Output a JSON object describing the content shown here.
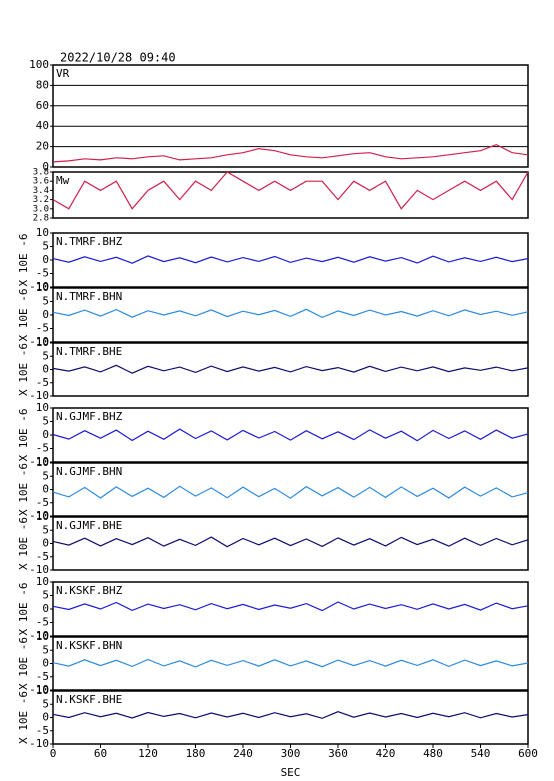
{
  "chart_data": [
    {
      "type": "line",
      "title": "2022/10/28 09:40",
      "label": "VR",
      "color": "#d0204a",
      "grid": true,
      "x": [
        0,
        20,
        40,
        60,
        80,
        100,
        120,
        140,
        160,
        180,
        200,
        220,
        240,
        260,
        280,
        300,
        320,
        340,
        360,
        380,
        400,
        420,
        440,
        460,
        480,
        500,
        520,
        540,
        560,
        580,
        600
      ],
      "values": [
        5,
        6,
        8,
        7,
        9,
        8,
        10,
        11,
        7,
        8,
        9,
        12,
        14,
        18,
        16,
        12,
        10,
        9,
        11,
        13,
        14,
        10,
        8,
        9,
        10,
        12,
        14,
        16,
        22,
        14,
        12
      ],
      "xlim": [
        0,
        600
      ],
      "ylim": [
        0,
        100
      ],
      "yticks": [
        0,
        20,
        40,
        60,
        80,
        100
      ]
    },
    {
      "type": "line",
      "label": "Mw",
      "color": "#d0204a",
      "x": [
        0,
        20,
        40,
        60,
        80,
        100,
        120,
        140,
        160,
        180,
        200,
        220,
        240,
        260,
        280,
        300,
        320,
        340,
        360,
        380,
        400,
        420,
        440,
        460,
        480,
        500,
        520,
        540,
        560,
        580,
        600
      ],
      "values": [
        3.2,
        3.0,
        3.6,
        3.4,
        3.6,
        3.0,
        3.4,
        3.6,
        3.2,
        3.6,
        3.4,
        3.8,
        3.6,
        3.4,
        3.6,
        3.4,
        3.6,
        3.6,
        3.2,
        3.6,
        3.4,
        3.6,
        3.0,
        3.4,
        3.2,
        3.4,
        3.6,
        3.4,
        3.6,
        3.2,
        3.8
      ],
      "xlim": [
        0,
        600
      ],
      "ylim": [
        2.8,
        3.8
      ],
      "yticks": [
        2.8,
        {
          "value": 3,
          "label": "3.0"
        },
        3.2,
        3.4,
        3.6,
        3.8
      ]
    },
    {
      "type": "line",
      "label": "N.TMRF.BHZ",
      "ylabel": "X 10E -6",
      "color": "#1a1ad8",
      "x": [
        0,
        20,
        40,
        60,
        80,
        100,
        120,
        140,
        160,
        180,
        200,
        220,
        240,
        260,
        280,
        300,
        320,
        340,
        360,
        380,
        400,
        420,
        440,
        460,
        480,
        500,
        520,
        540,
        560,
        580,
        600
      ],
      "values": [
        0.5,
        -0.8,
        1.2,
        -0.5,
        1.0,
        -1.2,
        1.5,
        -0.6,
        0.8,
        -1.0,
        1.1,
        -0.7,
        0.9,
        -0.5,
        1.3,
        -0.9,
        0.7,
        -0.6,
        1.0,
        -0.8,
        1.2,
        -0.4,
        0.9,
        -1.1,
        1.4,
        -0.7,
        0.8,
        -0.5,
        1.0,
        -0.6,
        0.5
      ],
      "xlim": [
        0,
        600
      ],
      "ylim": [
        -10,
        10
      ],
      "yticks": [
        -10,
        -5,
        0,
        5,
        10
      ]
    },
    {
      "type": "line",
      "label": "N.TMRF.BHN",
      "ylabel": "X 10E -6",
      "color": "#2b8ae0",
      "x": [
        0,
        20,
        40,
        60,
        80,
        100,
        120,
        140,
        160,
        180,
        200,
        220,
        240,
        260,
        280,
        300,
        320,
        340,
        360,
        380,
        400,
        420,
        440,
        460,
        480,
        500,
        520,
        540,
        560,
        580,
        600
      ],
      "values": [
        1.0,
        -0.2,
        1.8,
        -0.4,
        2.0,
        -0.8,
        1.6,
        0.0,
        1.5,
        -0.3,
        1.9,
        -0.6,
        1.4,
        0.1,
        1.7,
        -0.5,
        2.1,
        -0.9,
        1.5,
        -0.2,
        1.8,
        0.0,
        1.3,
        -0.4,
        1.6,
        -0.3,
        1.9,
        0.2,
        1.4,
        -0.1,
        1.2
      ],
      "xlim": [
        0,
        600
      ],
      "ylim": [
        -10,
        10
      ],
      "yticks": [
        -10,
        -5,
        0,
        5,
        10
      ]
    },
    {
      "type": "line",
      "label": "N.TMRF.BHE",
      "ylabel": "X 10E -6",
      "color": "#0c0c70",
      "x": [
        0,
        20,
        40,
        60,
        80,
        100,
        120,
        140,
        160,
        180,
        200,
        220,
        240,
        260,
        280,
        300,
        320,
        340,
        360,
        380,
        400,
        420,
        440,
        460,
        480,
        500,
        520,
        540,
        560,
        580,
        600
      ],
      "values": [
        0.4,
        -0.6,
        1.0,
        -0.9,
        1.6,
        -1.4,
        1.2,
        -0.5,
        0.9,
        -1.1,
        1.3,
        -0.8,
        1.0,
        -0.6,
        0.8,
        -0.9,
        1.1,
        -0.4,
        0.7,
        -1.0,
        1.2,
        -0.7,
        0.9,
        -0.5,
        1.0,
        -0.8,
        0.6,
        -0.3,
        0.9,
        -0.5,
        0.6
      ],
      "xlim": [
        0,
        600
      ],
      "ylim": [
        -10,
        10
      ],
      "yticks": [
        -10,
        -5,
        0,
        5,
        10
      ]
    },
    {
      "type": "line",
      "label": "N.GJMF.BHZ",
      "ylabel": "X 10E -6",
      "color": "#1a1ad8",
      "x": [
        0,
        20,
        40,
        60,
        80,
        100,
        120,
        140,
        160,
        180,
        200,
        220,
        240,
        260,
        280,
        300,
        320,
        340,
        360,
        380,
        400,
        420,
        440,
        460,
        480,
        500,
        520,
        540,
        560,
        580,
        600
      ],
      "values": [
        0.2,
        -1.5,
        1.6,
        -1.2,
        1.8,
        -2.0,
        1.4,
        -1.6,
        2.2,
        -1.3,
        1.5,
        -1.8,
        1.7,
        -1.1,
        1.3,
        -1.9,
        1.6,
        -1.4,
        1.2,
        -1.7,
        1.9,
        -1.2,
        1.4,
        -2.1,
        1.7,
        -1.3,
        1.5,
        -1.6,
        1.8,
        -1.2,
        0.4
      ],
      "xlim": [
        0,
        600
      ],
      "ylim": [
        -10,
        10
      ],
      "yticks": [
        -10,
        -5,
        0,
        5,
        10
      ]
    },
    {
      "type": "line",
      "label": "N.GJMF.BHN",
      "ylabel": "X 10E -6",
      "color": "#2b8ae0",
      "x": [
        0,
        20,
        40,
        60,
        80,
        100,
        120,
        140,
        160,
        180,
        200,
        220,
        240,
        260,
        280,
        300,
        320,
        340,
        360,
        380,
        400,
        420,
        440,
        460,
        480,
        500,
        520,
        540,
        560,
        580,
        600
      ],
      "values": [
        -1.0,
        -2.8,
        0.8,
        -3.2,
        1.0,
        -2.6,
        0.5,
        -3.0,
        1.2,
        -2.5,
        0.6,
        -3.1,
        0.9,
        -2.7,
        0.4,
        -3.3,
        1.1,
        -2.4,
        0.7,
        -2.9,
        0.8,
        -3.0,
        1.0,
        -2.6,
        0.5,
        -3.2,
        0.9,
        -2.5,
        0.6,
        -2.8,
        -1.2
      ],
      "xlim": [
        0,
        600
      ],
      "ylim": [
        -10,
        10
      ],
      "yticks": [
        -10,
        -5,
        0,
        5,
        10
      ]
    },
    {
      "type": "line",
      "label": "N.GJMF.BHE",
      "ylabel": "X 10E -6",
      "color": "#0c0c70",
      "x": [
        0,
        20,
        40,
        60,
        80,
        100,
        120,
        140,
        160,
        180,
        200,
        220,
        240,
        260,
        280,
        300,
        320,
        340,
        360,
        380,
        400,
        420,
        440,
        460,
        480,
        500,
        520,
        540,
        560,
        580,
        600
      ],
      "values": [
        0.8,
        -0.6,
        2.0,
        -0.9,
        1.8,
        -0.4,
        2.2,
        -1.0,
        1.6,
        -0.7,
        2.4,
        -1.2,
        1.9,
        -0.5,
        2.0,
        -0.8,
        1.7,
        -1.1,
        2.1,
        -0.6,
        1.8,
        -0.9,
        2.3,
        -0.4,
        1.6,
        -1.0,
        2.0,
        -0.7,
        1.9,
        -0.5,
        1.4
      ],
      "xlim": [
        0,
        600
      ],
      "ylim": [
        -10,
        10
      ],
      "yticks": [
        -10,
        -5,
        0,
        5,
        10
      ]
    },
    {
      "type": "line",
      "label": "N.KSKF.BHZ",
      "ylabel": "X 10E -6",
      "color": "#1a1ad8",
      "x": [
        0,
        20,
        40,
        60,
        80,
        100,
        120,
        140,
        160,
        180,
        200,
        220,
        240,
        260,
        280,
        300,
        320,
        340,
        360,
        380,
        400,
        420,
        440,
        460,
        480,
        500,
        520,
        540,
        560,
        580,
        600
      ],
      "values": [
        1.0,
        -0.2,
        1.9,
        0.0,
        2.4,
        -0.5,
        1.8,
        0.2,
        1.6,
        -0.3,
        2.0,
        0.1,
        1.7,
        -0.2,
        1.5,
        0.3,
        2.0,
        -0.6,
        2.6,
        0.0,
        1.8,
        0.2,
        1.6,
        -0.1,
        1.9,
        0.0,
        1.7,
        -0.4,
        2.2,
        0.1,
        1.2
      ],
      "xlim": [
        0,
        600
      ],
      "ylim": [
        -10,
        10
      ],
      "yticks": [
        -10,
        -5,
        0,
        5,
        10
      ]
    },
    {
      "type": "line",
      "label": "N.KSKF.BHN",
      "ylabel": "X 10E -6",
      "color": "#2b8ae0",
      "x": [
        0,
        20,
        40,
        60,
        80,
        100,
        120,
        140,
        160,
        180,
        200,
        220,
        240,
        260,
        280,
        300,
        320,
        340,
        360,
        380,
        400,
        420,
        440,
        460,
        480,
        500,
        520,
        540,
        560,
        580,
        600
      ],
      "values": [
        0.3,
        -1.0,
        1.4,
        -0.8,
        1.2,
        -1.1,
        1.5,
        -0.9,
        1.0,
        -1.3,
        1.2,
        -0.7,
        1.1,
        -1.0,
        1.4,
        -0.9,
        1.0,
        -1.2,
        1.3,
        -0.8,
        1.1,
        -1.0,
        1.2,
        -0.7,
        1.4,
        -1.1,
        1.3,
        -0.8,
        1.0,
        -0.9,
        0.2
      ],
      "xlim": [
        0,
        600
      ],
      "ylim": [
        -10,
        10
      ],
      "yticks": [
        -10,
        -5,
        0,
        5,
        10
      ]
    },
    {
      "type": "line",
      "label": "N.KSKF.BHE",
      "ylabel": "X 10E -6",
      "color": "#0c0c70",
      "xlabel": "SEC",
      "x": [
        0,
        20,
        40,
        60,
        80,
        100,
        120,
        140,
        160,
        180,
        200,
        220,
        240,
        260,
        280,
        300,
        320,
        340,
        360,
        380,
        400,
        420,
        440,
        460,
        480,
        500,
        520,
        540,
        560,
        580,
        600
      ],
      "values": [
        1.2,
        0.0,
        1.8,
        0.3,
        1.6,
        -0.2,
        1.9,
        0.4,
        1.5,
        -0.1,
        1.7,
        0.2,
        1.6,
        0.0,
        1.8,
        0.3,
        1.4,
        -0.3,
        2.2,
        0.1,
        1.7,
        0.2,
        1.5,
        0.0,
        1.6,
        0.3,
        1.8,
        -0.1,
        1.5,
        0.2,
        1.1
      ],
      "xlim": [
        0,
        600
      ],
      "ylim": [
        -10,
        10
      ],
      "yticks": [
        -10,
        -5,
        0,
        5,
        10
      ],
      "xticks": [
        0,
        60,
        120,
        180,
        240,
        300,
        360,
        420,
        480,
        540,
        600
      ]
    }
  ]
}
